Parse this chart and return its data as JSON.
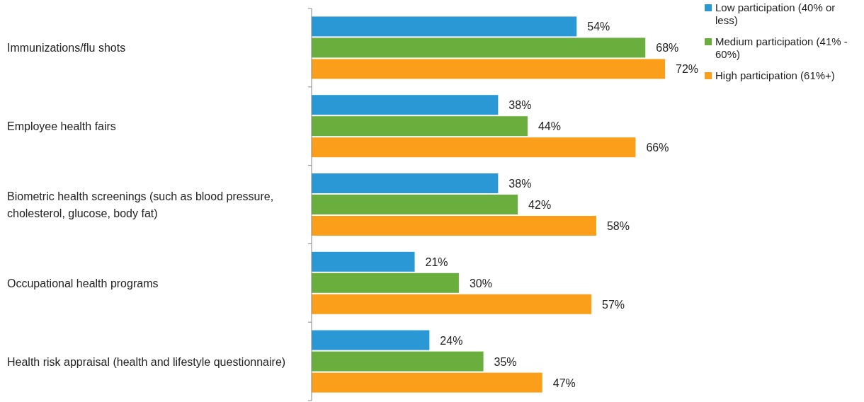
{
  "chart_data": {
    "type": "bar",
    "orientation": "horizontal",
    "categories": [
      "Immunizations/flu shots",
      "Employee health fairs",
      "Biometric health screenings (such as blood pressure, cholesterol, glucose, body fat)",
      "Occupational health programs",
      "Health risk appraisal (health and lifestyle questionnaire)"
    ],
    "series": [
      {
        "name": "Low participation (40% or less)",
        "color": "#2b98d6",
        "values": [
          54,
          38,
          38,
          21,
          24
        ],
        "value_labels": [
          "54%",
          "38%",
          "38%",
          "21%",
          "24%"
        ]
      },
      {
        "name": "Medium participation (41% - 60%)",
        "color": "#6aae3e",
        "values": [
          68,
          44,
          42,
          30,
          35
        ],
        "value_labels": [
          "68%",
          "44%",
          "42%",
          "30%",
          "35%"
        ]
      },
      {
        "name": "High participation (61%+)",
        "color": "#fb9f1a",
        "values": [
          72,
          66,
          58,
          57,
          47
        ],
        "value_labels": [
          "72%",
          "66%",
          "58%",
          "57%",
          "47%"
        ]
      }
    ],
    "tick_labels": "y",
    "legend": "top right"
  }
}
